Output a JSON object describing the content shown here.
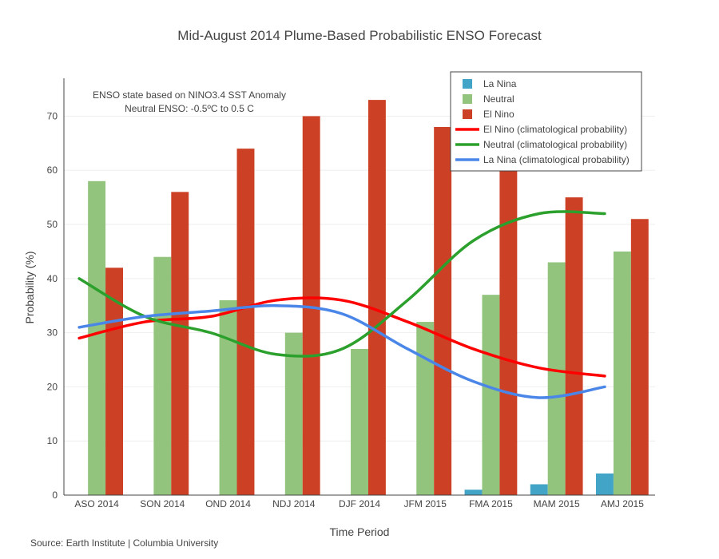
{
  "chart_data": {
    "type": "bar",
    "title": "Mid-August 2014 Plume-Based Probabilistic ENSO Forecast",
    "xlabel": "Time Period",
    "ylabel": "Probability (%)",
    "ylim": [
      0,
      77
    ],
    "yticks": [
      0,
      10,
      20,
      30,
      40,
      50,
      60,
      70
    ],
    "grid": true,
    "legend_position": "top-right",
    "categories": [
      "ASO 2014",
      "SON 2014",
      "OND 2014",
      "NDJ 2014",
      "DJF 2014",
      "JFM 2015",
      "FMA 2015",
      "MAM 2015",
      "AMJ 2015"
    ],
    "series": [
      {
        "name": "La Nina",
        "kind": "bar",
        "color": "#42a5c8",
        "values": [
          0,
          0,
          0,
          0,
          0,
          0,
          1,
          2,
          4
        ]
      },
      {
        "name": "Neutral",
        "kind": "bar",
        "color": "#93c47d",
        "values": [
          58,
          44,
          36,
          30,
          27,
          32,
          37,
          43,
          45
        ]
      },
      {
        "name": "El Nino",
        "kind": "bar",
        "color": "#cc4125",
        "values": [
          42,
          56,
          64,
          70,
          73,
          68,
          62,
          55,
          51
        ]
      },
      {
        "name": "El Nino (climatological probability)",
        "kind": "line",
        "color": "#ff0000",
        "values": [
          29,
          32,
          33,
          36,
          36,
          32,
          27,
          23.5,
          22
        ]
      },
      {
        "name": "Neutral (climatological probability)",
        "kind": "line",
        "color": "#2ca02c",
        "values": [
          40,
          33,
          30,
          26,
          27,
          36,
          47,
          52,
          52
        ]
      },
      {
        "name": "La Nina (climatological probability)",
        "kind": "line",
        "color": "#4a86e8",
        "values": [
          31,
          33,
          34,
          35,
          33.5,
          27,
          21,
          18,
          20
        ]
      }
    ],
    "annotations": [
      "ENSO state based on NINO3.4 SST Anomaly",
      "Neutral ENSO: -0.5ºC to 0.5 C"
    ]
  },
  "footer": {
    "source": "Source: Earth Institute | Columbia University"
  }
}
